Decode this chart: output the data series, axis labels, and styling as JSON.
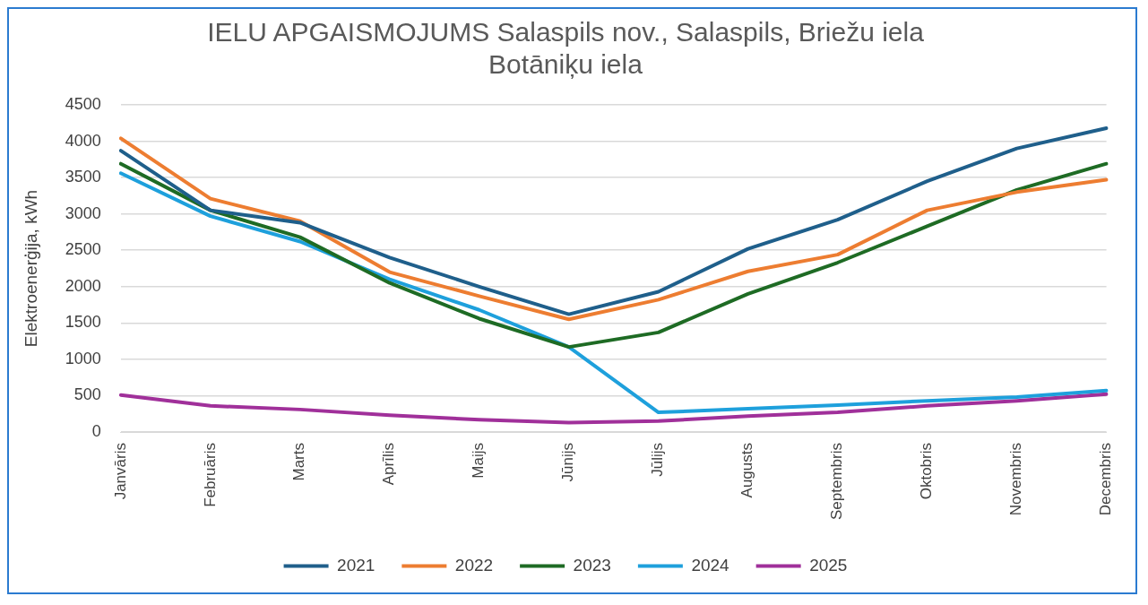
{
  "chart_data": {
    "type": "line",
    "title": [
      "IELU APGAISMOJUMS Salaspils nov., Salaspils, Briežu iela",
      "Botāniķu iela"
    ],
    "ylabel": "Elektroenerģija, kWh",
    "categories": [
      "Janvāris",
      "Februāris",
      "Marts",
      "Aprīlis",
      "Maijs",
      "Jūnijs",
      "Jūlijs",
      "Augusts",
      "Septembris",
      "Oktobris",
      "Novembris",
      "Decembris"
    ],
    "series": [
      {
        "name": "2021",
        "color": "#1f5f8b",
        "values": [
          3870,
          3050,
          2880,
          2400,
          2000,
          1620,
          1930,
          2520,
          2920,
          3450,
          3900,
          4180
        ]
      },
      {
        "name": "2022",
        "color": "#ed7d31",
        "values": [
          4040,
          3210,
          2900,
          2200,
          1870,
          1550,
          1820,
          2210,
          2440,
          3050,
          3300,
          3470
        ]
      },
      {
        "name": "2023",
        "color": "#1e6b24",
        "values": [
          3690,
          3050,
          2680,
          2050,
          1560,
          1170,
          1370,
          1900,
          2330,
          2830,
          3330,
          3690
        ]
      },
      {
        "name": "2024",
        "color": "#1ea0dc",
        "values": [
          3560,
          2970,
          2620,
          2100,
          1680,
          1170,
          270,
          320,
          370,
          430,
          480,
          570
        ]
      },
      {
        "name": "2025",
        "color": "#a0309a",
        "values": [
          510,
          360,
          310,
          230,
          170,
          130,
          150,
          220,
          270,
          360,
          430,
          520
        ]
      }
    ],
    "ylim": [
      0,
      4500
    ],
    "yticks": [
      0,
      500,
      1000,
      1500,
      2000,
      2500,
      3000,
      3500,
      4000,
      4500
    ],
    "grid": "y",
    "legend": "bottom",
    "marker": "none",
    "line_style": "solid"
  }
}
